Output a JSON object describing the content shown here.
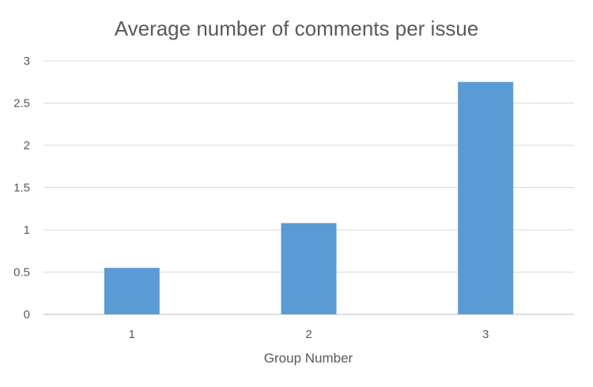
{
  "chart_data": {
    "type": "bar",
    "title": "Average number of comments per issue",
    "xlabel": "Group Number",
    "ylabel": "",
    "categories": [
      "1",
      "2",
      "3"
    ],
    "values": [
      0.55,
      1.08,
      2.75
    ],
    "ylim": [
      0,
      3
    ],
    "yticks": [
      0,
      0.5,
      1,
      1.5,
      2,
      2.5,
      3
    ],
    "ytick_labels": [
      "0",
      "0.5",
      "1",
      "1.5",
      "2",
      "2.5",
      "3"
    ],
    "grid": true,
    "legend": "none",
    "bar_color": "#5b9bd5",
    "grid_color": "#d9d9d9",
    "text_color": "#595959"
  }
}
